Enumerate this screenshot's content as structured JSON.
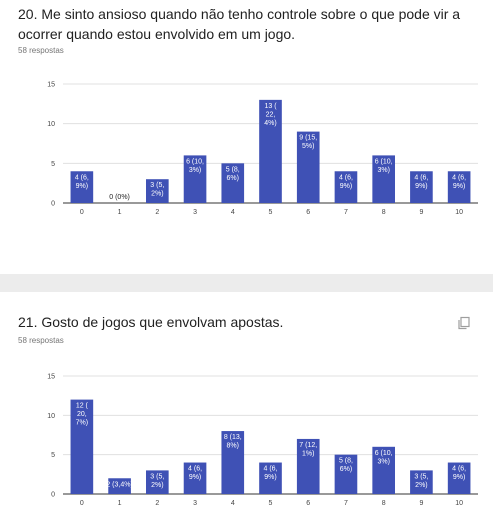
{
  "colors": {
    "bar": "#3f51b5",
    "grid": "#e0e0e0",
    "axis": "#333333",
    "background": "#ececec",
    "card": "#ffffff"
  },
  "questions": [
    {
      "title": "20. Me sinto ansioso quando não tenho controle sobre o que pode vir a ocorrer quando estou envolvido em um jogo.",
      "responses": "58 respostas"
    },
    {
      "title": "21. Gosto de jogos que envolvam apostas.",
      "responses": "58 respostas",
      "copy_icon": "copy-icon"
    }
  ],
  "chart_data": [
    {
      "type": "bar",
      "categories": [
        "0",
        "1",
        "2",
        "3",
        "4",
        "5",
        "6",
        "7",
        "8",
        "9",
        "10"
      ],
      "values": [
        4,
        0,
        3,
        6,
        5,
        13,
        9,
        4,
        6,
        4,
        4
      ],
      "data_labels": [
        [
          "4 (6,",
          "9%)"
        ],
        [
          "0 (0%)"
        ],
        [
          "3 (5,",
          "2%)"
        ],
        [
          "6 (10,",
          "3%)"
        ],
        [
          "5 (8,",
          "6%)"
        ],
        [
          "13 (",
          "22,",
          "4%)"
        ],
        [
          "9 (15,",
          "5%)"
        ],
        [
          "4 (6,",
          "9%)"
        ],
        [
          "6 (10,",
          "3%)"
        ],
        [
          "4 (6,",
          "9%)"
        ],
        [
          "4 (6,",
          "9%)"
        ]
      ],
      "yticks": [
        "0",
        "5",
        "10",
        "15"
      ],
      "ylim": [
        0,
        15
      ],
      "grid": true
    },
    {
      "type": "bar",
      "categories": [
        "0",
        "1",
        "2",
        "3",
        "4",
        "5",
        "6",
        "7",
        "8",
        "9",
        "10"
      ],
      "values": [
        12,
        2,
        3,
        4,
        8,
        4,
        7,
        5,
        6,
        3,
        4
      ],
      "data_labels": [
        [
          "12 (",
          "20,",
          "7%)"
        ],
        [
          "2 (3,4%)"
        ],
        [
          "3 (5,",
          "2%)"
        ],
        [
          "4 (6,",
          "9%)"
        ],
        [
          "8 (13,",
          "8%)"
        ],
        [
          "4 (6,",
          "9%)"
        ],
        [
          "7 (12,",
          "1%)"
        ],
        [
          "5 (8,",
          "6%)"
        ],
        [
          "6 (10,",
          "3%)"
        ],
        [
          "3 (5,",
          "2%)"
        ],
        [
          "4 (6,",
          "9%)"
        ]
      ],
      "yticks": [
        "0",
        "5",
        "10",
        "15"
      ],
      "ylim": [
        0,
        15
      ],
      "grid": true
    }
  ]
}
